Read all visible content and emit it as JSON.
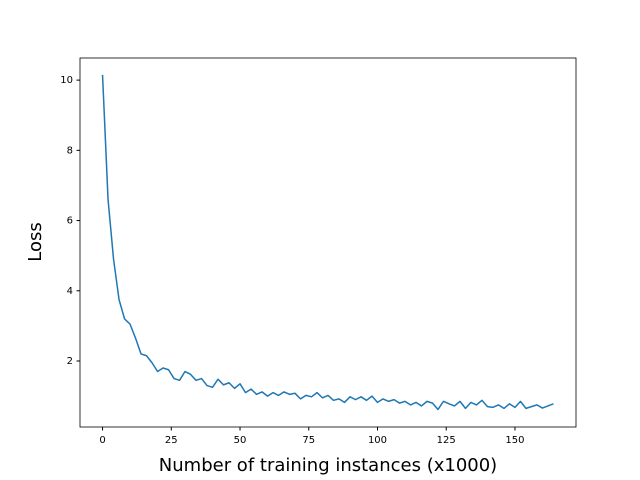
{
  "chart_data": {
    "type": "line",
    "xlabel": "Number of training instances (x1000)",
    "ylabel": "Loss",
    "x": [
      0,
      2,
      4,
      6,
      8,
      10,
      12,
      14,
      16,
      18,
      20,
      22,
      24,
      26,
      28,
      30,
      32,
      34,
      36,
      38,
      40,
      42,
      44,
      46,
      48,
      50,
      52,
      54,
      56,
      58,
      60,
      62,
      64,
      66,
      68,
      70,
      72,
      74,
      76,
      78,
      80,
      82,
      84,
      86,
      88,
      90,
      92,
      94,
      96,
      98,
      100,
      102,
      104,
      106,
      108,
      110,
      112,
      114,
      116,
      118,
      120,
      122,
      124,
      126,
      128,
      130,
      132,
      134,
      136,
      138,
      140,
      142,
      144,
      146,
      148,
      150,
      152,
      154,
      156,
      158,
      160,
      162,
      164
    ],
    "series": [
      {
        "color": "#1f77b4",
        "values": [
          10.15,
          6.6,
          4.9,
          3.75,
          3.2,
          3.05,
          2.65,
          2.2,
          2.15,
          1.95,
          1.7,
          1.8,
          1.75,
          1.5,
          1.45,
          1.7,
          1.62,
          1.45,
          1.5,
          1.3,
          1.25,
          1.48,
          1.32,
          1.38,
          1.22,
          1.35,
          1.1,
          1.2,
          1.05,
          1.12,
          1.0,
          1.1,
          1.02,
          1.12,
          1.05,
          1.08,
          0.92,
          1.02,
          0.98,
          1.1,
          0.95,
          1.02,
          0.88,
          0.92,
          0.82,
          0.98,
          0.9,
          0.98,
          0.88,
          1.0,
          0.82,
          0.92,
          0.85,
          0.9,
          0.8,
          0.85,
          0.75,
          0.82,
          0.72,
          0.85,
          0.8,
          0.62,
          0.85,
          0.78,
          0.72,
          0.85,
          0.65,
          0.82,
          0.75,
          0.88,
          0.7,
          0.68,
          0.75,
          0.65,
          0.78,
          0.68,
          0.85,
          0.65,
          0.7,
          0.75,
          0.66,
          0.72,
          0.78
        ]
      }
    ],
    "xlim": [
      -8.2,
      172.2
    ],
    "xticks": [
      0,
      25,
      50,
      75,
      100,
      125,
      150
    ],
    "ylim": [
      0.12,
      10.63
    ],
    "yticks": [
      2,
      4,
      6,
      8,
      10
    ]
  }
}
